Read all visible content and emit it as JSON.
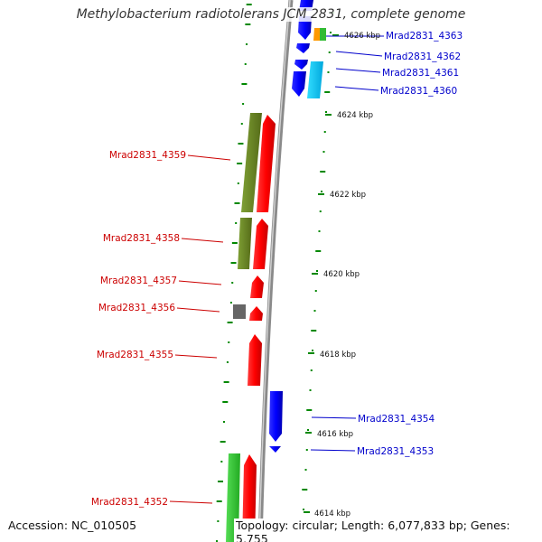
{
  "title": "Methylobacterium radiotolerans JCM 2831, complete genome",
  "footer": {
    "accession": "Accession: NC_010505",
    "summary": "Topology: circular; Length: 6,077,833 bp; Genes: 5,755"
  },
  "axis_labels": [
    {
      "key": "t4626",
      "text": "4626 kbp"
    },
    {
      "key": "t4624",
      "text": "4624 kbp"
    },
    {
      "key": "t4622",
      "text": "4622 kbp"
    },
    {
      "key": "t4620",
      "text": "4620 kbp"
    },
    {
      "key": "t4618",
      "text": "4618 kbp"
    },
    {
      "key": "t4616",
      "text": "4616 kbp"
    },
    {
      "key": "t4614",
      "text": "4614 kbp"
    }
  ],
  "genes": [
    {
      "key": "g4363",
      "label": "Mrad2831_4363",
      "strand": "reverse",
      "color": "#0000cc"
    },
    {
      "key": "g4362",
      "label": "Mrad2831_4362",
      "strand": "reverse",
      "color": "#0000cc"
    },
    {
      "key": "g4361",
      "label": "Mrad2831_4361",
      "strand": "reverse",
      "color": "#0000cc"
    },
    {
      "key": "g4360",
      "label": "Mrad2831_4360",
      "strand": "reverse",
      "color": "#0000cc"
    },
    {
      "key": "g4359",
      "label": "Mrad2831_4359",
      "strand": "forward",
      "color": "#cc0000"
    },
    {
      "key": "g4358",
      "label": "Mrad2831_4358",
      "strand": "forward",
      "color": "#cc0000"
    },
    {
      "key": "g4357",
      "label": "Mrad2831_4357",
      "strand": "forward",
      "color": "#cc0000"
    },
    {
      "key": "g4356",
      "label": "Mrad2831_4356",
      "strand": "forward",
      "color": "#cc0000"
    },
    {
      "key": "g4355",
      "label": "Mrad2831_4355",
      "strand": "forward",
      "color": "#cc0000"
    },
    {
      "key": "g4354",
      "label": "Mrad2831_4354",
      "strand": "reverse",
      "color": "#0000cc"
    },
    {
      "key": "g4353",
      "label": "Mrad2831_4353",
      "strand": "reverse",
      "color": "#0000cc"
    },
    {
      "key": "g4352",
      "label": "Mrad2831_4352",
      "strand": "forward",
      "color": "#cc0000"
    }
  ],
  "colors": {
    "forward_cds": "#ff0000",
    "reverse_cds": "#0000ff",
    "cog_olive": "#6b8e23",
    "cog_green": "#33cc33",
    "cog_cyan": "#00ccff",
    "cog_orange": "#ff9900",
    "cog_gray": "#666666",
    "backbone": "#888888",
    "gc_skew": "#008800"
  }
}
